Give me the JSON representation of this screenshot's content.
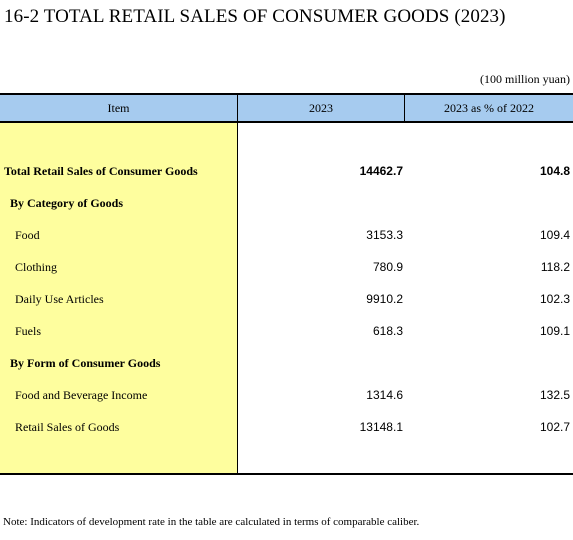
{
  "title": "16-2  TOTAL RETAIL SALES OF CONSUMER GOODS (2023)",
  "unit": "(100 million yuan)",
  "table": {
    "headers": [
      "Item",
      "2023",
      "2023 as % of 2022"
    ],
    "rows": [
      {
        "label": "Total Retail Sales of Consumer Goods",
        "value_2023": "14462.7",
        "pct_of_2022": "104.8"
      },
      {
        "label": "By Category of Goods",
        "value_2023": "",
        "pct_of_2022": ""
      },
      {
        "label": "Food",
        "value_2023": "3153.3",
        "pct_of_2022": "109.4"
      },
      {
        "label": "Clothing",
        "value_2023": "780.9",
        "pct_of_2022": "118.2"
      },
      {
        "label": "Daily Use Articles",
        "value_2023": "9910.2",
        "pct_of_2022": "102.3"
      },
      {
        "label": "Fuels",
        "value_2023": "618.3",
        "pct_of_2022": "109.1"
      },
      {
        "label": "By Form of Consumer Goods",
        "value_2023": "",
        "pct_of_2022": ""
      },
      {
        "label": "Food and Beverage Income",
        "value_2023": "1314.6",
        "pct_of_2022": "132.5"
      },
      {
        "label": "Retail Sales of Goods",
        "value_2023": "13148.1",
        "pct_of_2022": "102.7"
      }
    ]
  },
  "note": "Note: Indicators of development rate in the table are calculated in terms of comparable caliber."
}
